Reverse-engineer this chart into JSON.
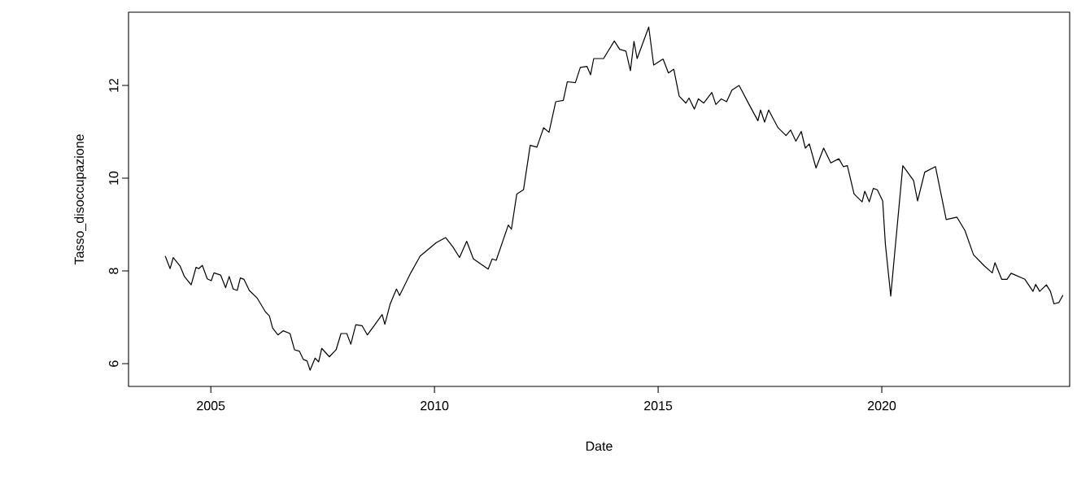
{
  "chart_data": {
    "type": "line",
    "xlabel": "Date",
    "ylabel": "Tasso_disoccupazione",
    "xlim": [
      2003.16,
      2024.2
    ],
    "ylim": [
      5.51,
      13.58
    ],
    "xticks": [
      2005,
      2010,
      2015,
      2020
    ],
    "yticks": [
      6,
      8,
      10,
      12
    ],
    "grid": false,
    "x": [
      2003.98,
      2004.09,
      2004.16,
      2004.31,
      2004.41,
      2004.56,
      2004.67,
      2004.73,
      2004.81,
      2004.92,
      2005.01,
      2005.07,
      2005.22,
      2005.33,
      2005.41,
      2005.5,
      2005.59,
      2005.66,
      2005.74,
      2005.86,
      2006.04,
      2006.22,
      2006.31,
      2006.38,
      2006.5,
      2006.62,
      2006.77,
      2006.87,
      2006.98,
      2007.07,
      2007.15,
      2007.22,
      2007.33,
      2007.41,
      2007.48,
      2007.65,
      2007.8,
      2007.91,
      2008.04,
      2008.13,
      2008.24,
      2008.38,
      2008.5,
      2008.65,
      2008.83,
      2008.89,
      2009.01,
      2009.15,
      2009.22,
      2009.47,
      2009.68,
      2010.04,
      2010.25,
      2010.41,
      2010.56,
      2010.72,
      2010.87,
      2011.2,
      2011.29,
      2011.38,
      2011.65,
      2011.72,
      2011.84,
      2011.99,
      2012.14,
      2012.29,
      2012.44,
      2012.56,
      2012.71,
      2012.88,
      2012.97,
      2013.15,
      2013.26,
      2013.41,
      2013.49,
      2013.56,
      2013.78,
      2014.02,
      2014.14,
      2014.28,
      2014.38,
      2014.46,
      2014.53,
      2014.79,
      2014.9,
      2015.11,
      2015.23,
      2015.35,
      2015.47,
      2015.62,
      2015.69,
      2015.81,
      2015.9,
      2016.02,
      2016.2,
      2016.29,
      2016.41,
      2016.53,
      2016.65,
      2016.81,
      2017.05,
      2017.23,
      2017.29,
      2017.38,
      2017.47,
      2017.68,
      2017.86,
      2017.96,
      2018.08,
      2018.2,
      2018.29,
      2018.38,
      2018.53,
      2018.7,
      2018.86,
      2019.04,
      2019.14,
      2019.23,
      2019.38,
      2019.56,
      2019.62,
      2019.72,
      2019.81,
      2019.9,
      2020.02,
      2020.08,
      2020.2,
      2020.29,
      2020.47,
      2020.71,
      2020.8,
      2020.96,
      2021.2,
      2021.44,
      2021.68,
      2021.86,
      2022.05,
      2022.29,
      2022.47,
      2022.53,
      2022.68,
      2022.8,
      2022.89,
      2023.2,
      2023.38,
      2023.44,
      2023.53,
      2023.68,
      2023.77,
      2023.85,
      2023.96,
      2024.05
    ],
    "series": [
      {
        "color": "#000000",
        "values": [
          8.32,
          8.05,
          8.29,
          8.11,
          7.88,
          7.7,
          8.08,
          8.05,
          8.12,
          7.83,
          7.79,
          7.96,
          7.91,
          7.64,
          7.88,
          7.61,
          7.58,
          7.85,
          7.82,
          7.58,
          7.41,
          7.12,
          7.03,
          6.77,
          6.62,
          6.71,
          6.65,
          6.3,
          6.27,
          6.09,
          6.06,
          5.86,
          6.12,
          6.04,
          6.33,
          6.15,
          6.3,
          6.65,
          6.65,
          6.42,
          6.84,
          6.82,
          6.62,
          6.82,
          7.06,
          6.85,
          7.29,
          7.61,
          7.47,
          7.96,
          8.32,
          8.61,
          8.72,
          8.52,
          8.29,
          8.64,
          8.26,
          8.04,
          8.26,
          8.23,
          8.99,
          8.9,
          9.66,
          9.75,
          10.71,
          10.67,
          11.09,
          10.99,
          11.65,
          11.68,
          12.08,
          12.06,
          12.39,
          12.41,
          12.23,
          12.58,
          12.58,
          12.96,
          12.78,
          12.74,
          12.32,
          12.95,
          12.58,
          13.26,
          12.44,
          12.57,
          12.27,
          12.35,
          11.77,
          11.62,
          11.73,
          11.49,
          11.71,
          11.62,
          11.85,
          11.59,
          11.71,
          11.65,
          11.9,
          12.0,
          11.56,
          11.24,
          11.47,
          11.21,
          11.47,
          11.09,
          10.92,
          11.04,
          10.8,
          11.01,
          10.65,
          10.74,
          10.22,
          10.65,
          10.33,
          10.42,
          10.25,
          10.27,
          9.66,
          9.49,
          9.72,
          9.49,
          9.78,
          9.75,
          9.51,
          8.58,
          7.46,
          8.4,
          10.27,
          9.95,
          9.51,
          10.13,
          10.25,
          9.11,
          9.16,
          8.87,
          8.35,
          8.11,
          7.96,
          8.18,
          7.82,
          7.82,
          7.95,
          7.82,
          7.56,
          7.71,
          7.56,
          7.7,
          7.56,
          7.29,
          7.32,
          7.48
        ]
      }
    ]
  }
}
